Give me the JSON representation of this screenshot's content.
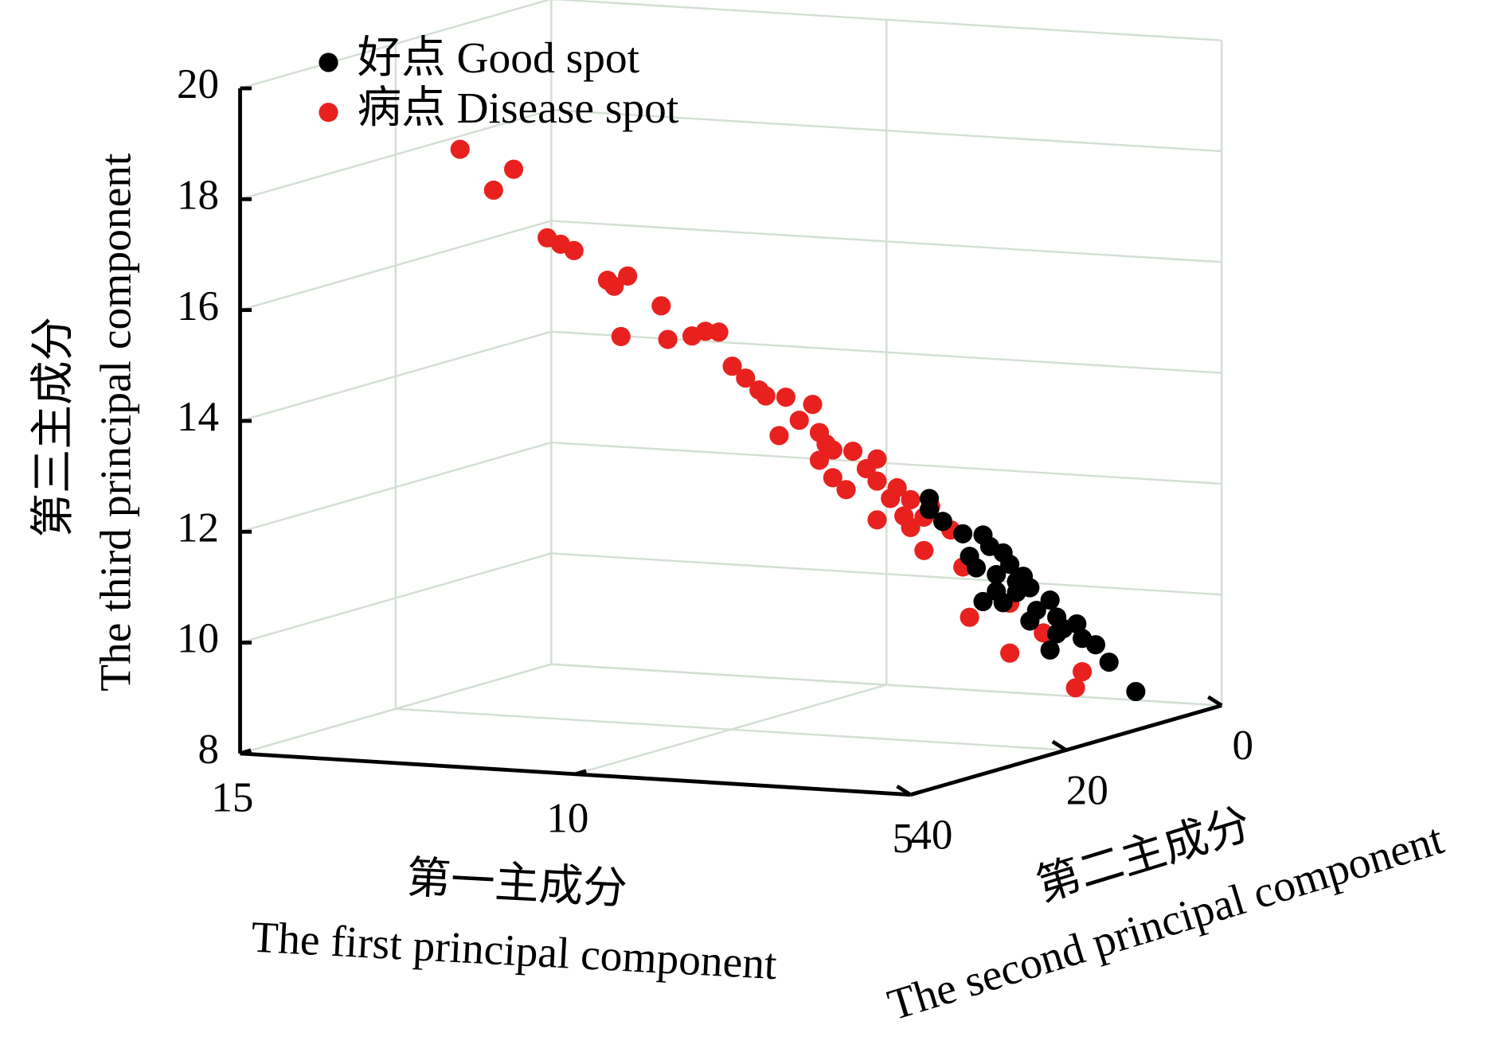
{
  "chart_data": {
    "type": "scatter3d",
    "xlabel": [
      "第一主成分",
      "The first principal component"
    ],
    "ylabel": [
      "第二主成分",
      "The second principal component"
    ],
    "zlabel": [
      "第三主成分",
      "The third principal component"
    ],
    "xlim": [
      5,
      15
    ],
    "xticks": [
      5,
      10,
      15
    ],
    "ylim": [
      0,
      40
    ],
    "yticks": [
      0,
      20,
      40
    ],
    "zlim": [
      8,
      20
    ],
    "zticks": [
      8,
      10,
      12,
      14,
      16,
      18,
      20
    ],
    "grid": true,
    "legend": "upper left",
    "series": [
      {
        "name": "好点 Good spot",
        "color": "#000000",
        "x": [
          7.7,
          8.0,
          8.2,
          8.2,
          7.4,
          7.3,
          7.1,
          7.0,
          7.2,
          7.6,
          7.5,
          6.9,
          6.9,
          6.7,
          6.8,
          7.2,
          7.4,
          7.1,
          6.6,
          6.4,
          6.7,
          6.3,
          6.2,
          6.3,
          6.0,
          6.4,
          6.5,
          6.3,
          6.1,
          5.7
        ],
        "y": [
          10,
          10,
          10,
          10,
          10,
          10,
          10,
          10,
          10,
          10,
          10,
          10,
          10,
          10,
          10,
          10,
          10,
          10,
          10,
          10,
          10,
          10,
          10,
          10,
          10,
          10,
          5,
          5,
          5,
          5
        ],
        "z": [
          11.3,
          11.5,
          11.7,
          11.9,
          11.3,
          11.1,
          11.0,
          10.8,
          10.6,
          10.9,
          10.7,
          10.5,
          10.3,
          10.4,
          10.6,
          10.3,
          10.1,
          10.1,
          10.0,
          10.2,
          9.8,
          9.9,
          9.7,
          9.6,
          9.8,
          9.3,
          9.3,
          9.2,
          8.9,
          8.4
        ]
      },
      {
        "name": "病点 Disease spot",
        "color": "#e8211e",
        "x": [
          12.3,
          11.8,
          11.5,
          11.0,
          10.8,
          10.6,
          10.1,
          10.0,
          9.8,
          9.3,
          9.9,
          9.2,
          10.0,
          9.8,
          9.6,
          9.4,
          9.2,
          9.0,
          8.9,
          8.6,
          8.2,
          8.7,
          8.4,
          8.1,
          8.0,
          7.9,
          7.6,
          8.1,
          7.7,
          7.9,
          7.4,
          8.4,
          8.4,
          8.2,
          8.1,
          7.9,
          8.4,
          7.9,
          7.6,
          7.7,
          7.3,
          8.0,
          7.7,
          7.7,
          7.6,
          7.0,
          7.0,
          6.5,
          6.6,
          6.5
        ],
        "y": [
          35,
          35,
          35,
          35,
          35,
          35,
          35,
          35,
          35,
          35,
          35,
          35,
          25,
          25,
          25,
          25,
          25,
          25,
          25,
          25,
          25,
          25,
          25,
          25,
          25,
          25,
          25,
          25,
          25,
          25,
          25,
          15,
          15,
          15,
          15,
          15,
          15,
          15,
          15,
          15,
          15,
          15,
          15,
          10,
          10,
          10,
          10,
          10,
          5,
          5
        ],
        "z": [
          18.9,
          18.2,
          18.6,
          17.4,
          17.3,
          17.2,
          16.7,
          16.6,
          16.8,
          16.3,
          15.7,
          15.7,
          15.3,
          15.4,
          15.4,
          14.8,
          14.6,
          14.4,
          14.3,
          14.3,
          14.2,
          13.6,
          13.9,
          13.7,
          13.5,
          13.4,
          13.4,
          13.2,
          12.7,
          12.9,
          13.1,
          12.8,
          12.4,
          12.1,
          12.3,
          12.1,
          11.7,
          11.6,
          12.0,
          11.2,
          11.6,
          11.8,
          11.8,
          10.7,
          9.8,
          9.2,
          10.1,
          9.6,
          8.4,
          8.7
        ]
      }
    ]
  }
}
